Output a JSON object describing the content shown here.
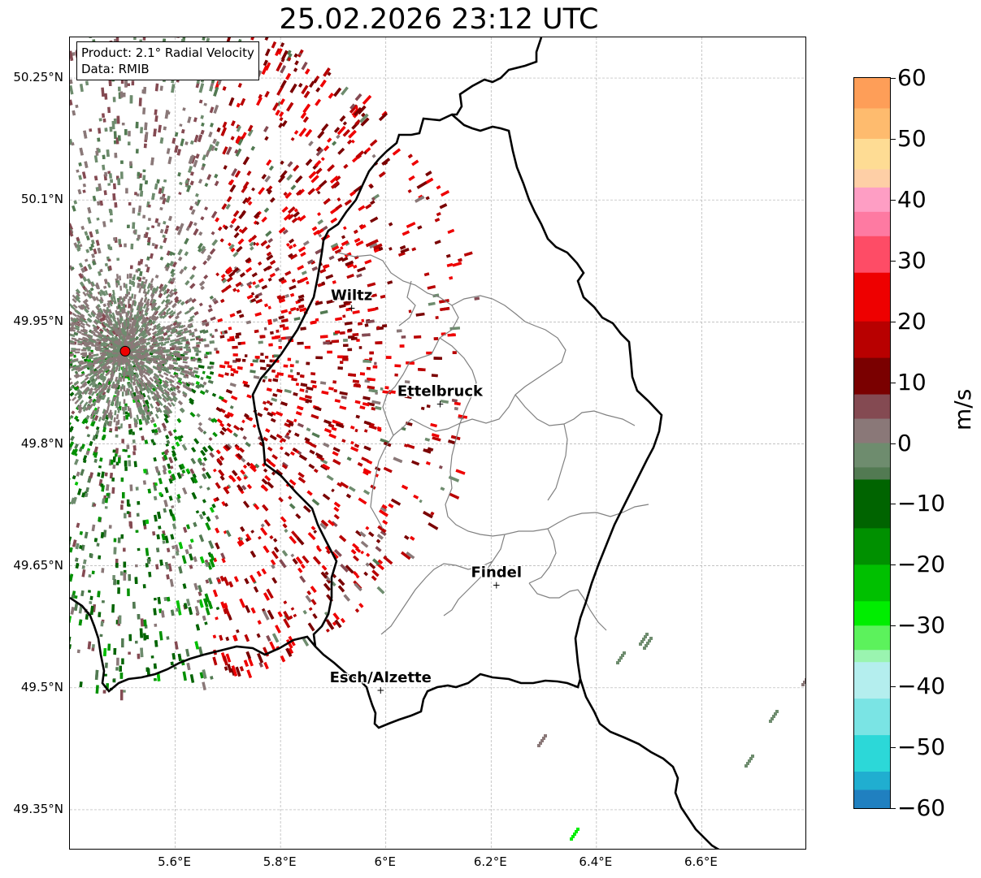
{
  "title": "25.02.2026 23:12 UTC",
  "info_box": {
    "product": "Product: 2.1° Radial Velocity",
    "data": "Data: RMIB"
  },
  "map": {
    "lon_range": [
      5.4,
      6.8
    ],
    "lat_range": [
      49.3,
      50.3
    ],
    "radar_site": {
      "lon": 5.505,
      "lat": 49.914
    },
    "lat_ticks": [
      {
        "value": 50.25,
        "label": "50.25°N"
      },
      {
        "value": 50.1,
        "label": "50.1°N"
      },
      {
        "value": 49.95,
        "label": "49.95°N"
      },
      {
        "value": 49.8,
        "label": "49.8°N"
      },
      {
        "value": 49.65,
        "label": "49.65°N"
      },
      {
        "value": 49.5,
        "label": "49.5°N"
      },
      {
        "value": 49.35,
        "label": "49.35°N"
      }
    ],
    "lon_ticks": [
      {
        "value": 5.6,
        "label": "5.6°E"
      },
      {
        "value": 5.8,
        "label": "5.8°E"
      },
      {
        "value": 6.0,
        "label": "6°E"
      },
      {
        "value": 6.2,
        "label": "6.2°E"
      },
      {
        "value": 6.4,
        "label": "6.4°E"
      },
      {
        "value": 6.6,
        "label": "6.6°E"
      }
    ],
    "cities": [
      {
        "name": "Wiltz",
        "lon": 5.935,
        "lat": 49.967
      },
      {
        "name": "Ettelbruck",
        "lon": 6.103,
        "lat": 49.849
      },
      {
        "name": "Findel",
        "lon": 6.21,
        "lat": 49.626
      },
      {
        "name": "Esch/Alzette",
        "lon": 5.99,
        "lat": 49.497
      }
    ]
  },
  "colorbar": {
    "min": -60,
    "max": 60,
    "unit": "m/s",
    "ticks": [
      {
        "value": 60,
        "label": "60"
      },
      {
        "value": 50,
        "label": "50"
      },
      {
        "value": 40,
        "label": "40"
      },
      {
        "value": 30,
        "label": "30"
      },
      {
        "value": 20,
        "label": "20"
      },
      {
        "value": 10,
        "label": "10"
      },
      {
        "value": 0,
        "label": "0"
      },
      {
        "value": -10,
        "label": "−10"
      },
      {
        "value": -20,
        "label": "−20"
      },
      {
        "value": -30,
        "label": "−30"
      },
      {
        "value": -40,
        "label": "−40"
      },
      {
        "value": -50,
        "label": "−50"
      },
      {
        "value": -60,
        "label": "−60"
      }
    ],
    "colors": [
      {
        "from": 55,
        "to": 60,
        "color": "#fe9e58"
      },
      {
        "from": 50,
        "to": 55,
        "color": "#febb6e"
      },
      {
        "from": 45,
        "to": 50,
        "color": "#fedc94"
      },
      {
        "from": 42,
        "to": 45,
        "color": "#fecfa6"
      },
      {
        "from": 38,
        "to": 42,
        "color": "#fe9ec4"
      },
      {
        "from": 34,
        "to": 38,
        "color": "#fe7aa2"
      },
      {
        "from": 28,
        "to": 34,
        "color": "#fe4c66"
      },
      {
        "from": 20,
        "to": 28,
        "color": "#ee0000"
      },
      {
        "from": 14,
        "to": 20,
        "color": "#b80000"
      },
      {
        "from": 8,
        "to": 14,
        "color": "#7a0000"
      },
      {
        "from": 4,
        "to": 8,
        "color": "#844a52"
      },
      {
        "from": 0,
        "to": 4,
        "color": "#8a7878"
      },
      {
        "from": -4,
        "to": 0,
        "color": "#6e8c6e"
      },
      {
        "from": -6,
        "to": -4,
        "color": "#527a52"
      },
      {
        "from": -14,
        "to": -6,
        "color": "#006400"
      },
      {
        "from": -20,
        "to": -14,
        "color": "#009000"
      },
      {
        "from": -26,
        "to": -20,
        "color": "#00c000"
      },
      {
        "from": -30,
        "to": -26,
        "color": "#00ee00"
      },
      {
        "from": -34,
        "to": -30,
        "color": "#5cf25c"
      },
      {
        "from": -36,
        "to": -34,
        "color": "#9af4b0"
      },
      {
        "from": -42,
        "to": -36,
        "color": "#b4eeee"
      },
      {
        "from": -48,
        "to": -42,
        "color": "#7ae4e4"
      },
      {
        "from": -54,
        "to": -48,
        "color": "#2cd8d8"
      },
      {
        "from": -57,
        "to": -54,
        "color": "#20aed0"
      },
      {
        "from": -60,
        "to": -57,
        "color": "#2080c0"
      }
    ]
  }
}
